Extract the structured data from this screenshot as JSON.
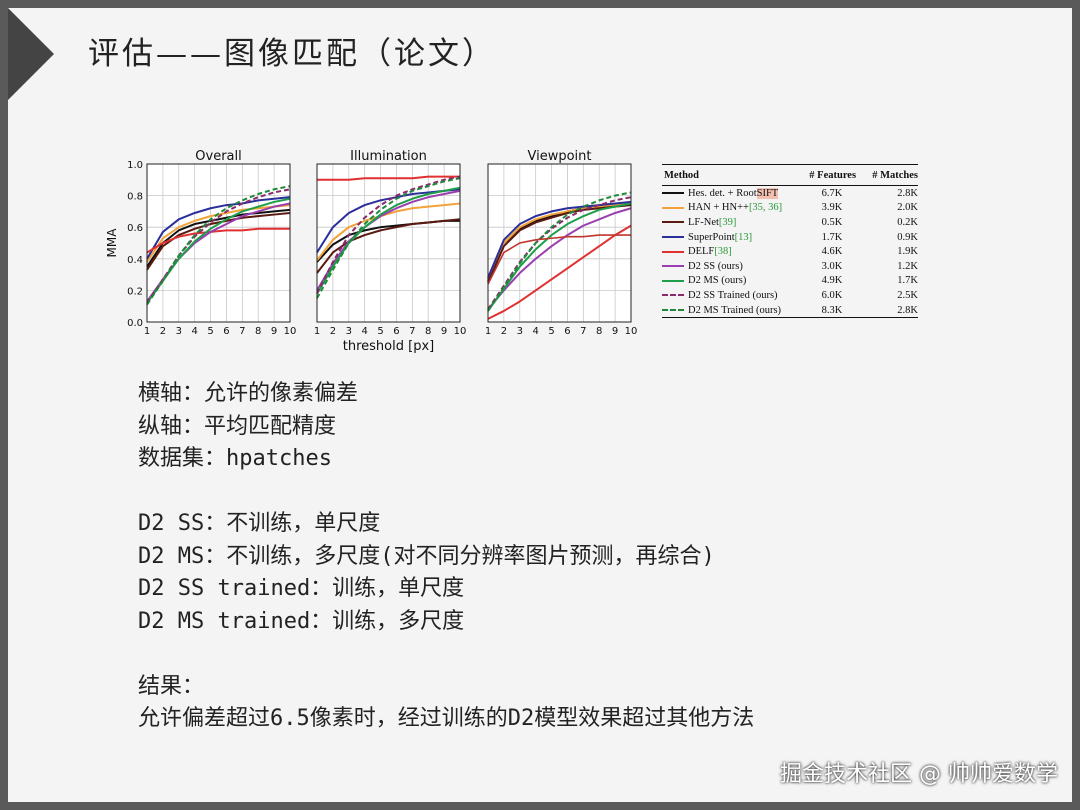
{
  "slide": {
    "title": "评估——图像匹配（论文）",
    "watermark": "掘金技术社区 @ 帅帅爱数学"
  },
  "chart_data": {
    "type": "line",
    "ylabel": "MMA",
    "xlabel": "threshold [px]",
    "x": [
      1,
      2,
      3,
      4,
      5,
      6,
      7,
      8,
      9,
      10
    ],
    "xlim": [
      1,
      10
    ],
    "ylim": [
      0,
      1
    ],
    "yticks": [
      "0.0",
      "0.2",
      "0.4",
      "0.6",
      "0.8",
      "1.0"
    ],
    "xticks": [
      "1",
      "2",
      "3",
      "4",
      "5",
      "6",
      "7",
      "8",
      "9",
      "10"
    ],
    "grid": true,
    "panels": [
      {
        "title": "Overall",
        "series": [
          {
            "key": "hes",
            "values": [
              0.35,
              0.5,
              0.58,
              0.62,
              0.64,
              0.66,
              0.68,
              0.69,
              0.7,
              0.71
            ]
          },
          {
            "key": "han",
            "values": [
              0.38,
              0.53,
              0.6,
              0.64,
              0.67,
              0.69,
              0.71,
              0.72,
              0.73,
              0.74
            ]
          },
          {
            "key": "lfnet",
            "values": [
              0.33,
              0.48,
              0.55,
              0.59,
              0.62,
              0.64,
              0.66,
              0.67,
              0.68,
              0.69
            ]
          },
          {
            "key": "superpoint",
            "values": [
              0.4,
              0.57,
              0.65,
              0.69,
              0.72,
              0.74,
              0.75,
              0.77,
              0.78,
              0.79
            ]
          },
          {
            "key": "delf",
            "values": [
              0.44,
              0.5,
              0.54,
              0.56,
              0.57,
              0.58,
              0.58,
              0.59,
              0.59,
              0.59
            ]
          },
          {
            "key": "d2ss",
            "values": [
              0.13,
              0.27,
              0.4,
              0.5,
              0.57,
              0.62,
              0.67,
              0.7,
              0.73,
              0.75
            ]
          },
          {
            "key": "d2ms",
            "values": [
              0.12,
              0.26,
              0.4,
              0.51,
              0.59,
              0.65,
              0.7,
              0.73,
              0.76,
              0.78
            ]
          },
          {
            "key": "d2ssT",
            "values": [
              0.12,
              0.27,
              0.42,
              0.54,
              0.63,
              0.7,
              0.75,
              0.79,
              0.82,
              0.84
            ]
          },
          {
            "key": "d2msT",
            "values": [
              0.11,
              0.26,
              0.42,
              0.55,
              0.65,
              0.72,
              0.77,
              0.81,
              0.84,
              0.86
            ]
          }
        ]
      },
      {
        "title": "Illumination",
        "series": [
          {
            "key": "hes",
            "values": [
              0.38,
              0.49,
              0.55,
              0.58,
              0.6,
              0.61,
              0.62,
              0.63,
              0.64,
              0.64
            ]
          },
          {
            "key": "han",
            "values": [
              0.39,
              0.52,
              0.6,
              0.64,
              0.67,
              0.7,
              0.72,
              0.73,
              0.74,
              0.75
            ]
          },
          {
            "key": "lfnet",
            "values": [
              0.31,
              0.44,
              0.51,
              0.55,
              0.58,
              0.6,
              0.62,
              0.63,
              0.64,
              0.65
            ]
          },
          {
            "key": "superpoint",
            "values": [
              0.44,
              0.6,
              0.69,
              0.74,
              0.77,
              0.79,
              0.81,
              0.82,
              0.83,
              0.84
            ]
          },
          {
            "key": "delf",
            "values": [
              0.9,
              0.9,
              0.9,
              0.91,
              0.91,
              0.91,
              0.91,
              0.92,
              0.92,
              0.92
            ]
          },
          {
            "key": "d2ss",
            "values": [
              0.2,
              0.37,
              0.51,
              0.6,
              0.67,
              0.72,
              0.76,
              0.79,
              0.81,
              0.83
            ]
          },
          {
            "key": "d2ms",
            "values": [
              0.18,
              0.35,
              0.5,
              0.6,
              0.68,
              0.74,
              0.78,
              0.81,
              0.83,
              0.85
            ]
          },
          {
            "key": "d2ssT",
            "values": [
              0.18,
              0.38,
              0.55,
              0.66,
              0.74,
              0.8,
              0.84,
              0.87,
              0.9,
              0.92
            ]
          },
          {
            "key": "d2msT",
            "values": [
              0.15,
              0.33,
              0.5,
              0.62,
              0.71,
              0.78,
              0.83,
              0.86,
              0.89,
              0.91
            ]
          }
        ]
      },
      {
        "title": "Viewpoint",
        "series": [
          {
            "key": "hes",
            "values": [
              0.26,
              0.5,
              0.59,
              0.64,
              0.67,
              0.7,
              0.72,
              0.73,
              0.74,
              0.75
            ]
          },
          {
            "key": "han",
            "values": [
              0.27,
              0.5,
              0.6,
              0.65,
              0.68,
              0.7,
              0.72,
              0.73,
              0.74,
              0.76
            ]
          },
          {
            "key": "lfnet",
            "values": [
              0.25,
              0.48,
              0.58,
              0.63,
              0.66,
              0.69,
              0.71,
              0.72,
              0.73,
              0.74
            ]
          },
          {
            "key": "superpoint",
            "values": [
              0.28,
              0.52,
              0.62,
              0.67,
              0.7,
              0.72,
              0.73,
              0.74,
              0.75,
              0.76
            ]
          },
          {
            "key": "delf",
            "values": [
              0.02,
              0.07,
              0.13,
              0.2,
              0.27,
              0.34,
              0.41,
              0.48,
              0.55,
              0.61
            ]
          },
          {
            "key": "d2ss",
            "values": [
              0.08,
              0.2,
              0.31,
              0.4,
              0.48,
              0.55,
              0.61,
              0.65,
              0.69,
              0.72
            ]
          },
          {
            "key": "d2ms",
            "values": [
              0.07,
              0.21,
              0.35,
              0.46,
              0.55,
              0.62,
              0.67,
              0.71,
              0.73,
              0.75
            ]
          },
          {
            "key": "d2ssT",
            "values": [
              0.08,
              0.23,
              0.38,
              0.5,
              0.59,
              0.66,
              0.71,
              0.74,
              0.77,
              0.79
            ]
          },
          {
            "key": "d2msT",
            "values": [
              0.07,
              0.22,
              0.37,
              0.5,
              0.6,
              0.68,
              0.73,
              0.77,
              0.8,
              0.82
            ]
          }
        ]
      }
    ],
    "extra_series": [
      {
        "panel": "Viewpoint",
        "key": "delf_upper",
        "values": [
          0.24,
          0.44,
          0.5,
          0.52,
          0.53,
          0.54,
          0.54,
          0.55,
          0.55,
          0.55
        ]
      }
    ]
  },
  "legend_table": {
    "headers": {
      "method": "Method",
      "features": "# Features",
      "matches": "# Matches"
    },
    "rows": [
      {
        "key": "hes",
        "method_pre": "Hes. det. + Root",
        "method_hl": "SIFT",
        "method_ref": "",
        "features": "6.7K",
        "matches": "2.8K",
        "color": "#111111",
        "dashed": false
      },
      {
        "key": "han",
        "method_pre": "HAN + HN++ ",
        "method_hl": "",
        "method_ref": "[35, 36]",
        "features": "3.9K",
        "matches": "2.0K",
        "color": "#f2a33a",
        "dashed": false
      },
      {
        "key": "lfnet",
        "method_pre": "LF-Net ",
        "method_hl": "",
        "method_ref": "[39]",
        "features": "0.5K",
        "matches": "0.2K",
        "color": "#5a1a10",
        "dashed": false
      },
      {
        "key": "superpoint",
        "method_pre": "SuperPoint ",
        "method_hl": "",
        "method_ref": "[13]",
        "features": "1.7K",
        "matches": "0.9K",
        "color": "#2b2f9a",
        "dashed": false
      },
      {
        "key": "delf",
        "method_pre": "DELF ",
        "method_hl": "",
        "method_ref": "[38]",
        "features": "4.6K",
        "matches": "1.9K",
        "color": "#e03030",
        "dashed": false
      },
      {
        "key": "d2ss",
        "method_pre": "D2 SS (ours)",
        "method_hl": "",
        "method_ref": "",
        "features": "3.0K",
        "matches": "1.2K",
        "color": "#9b3fb0",
        "dashed": false
      },
      {
        "key": "d2ms",
        "method_pre": "D2 MS (ours)",
        "method_hl": "",
        "method_ref": "",
        "features": "4.9K",
        "matches": "1.7K",
        "color": "#1f9e4a",
        "dashed": false
      },
      {
        "key": "d2ssT",
        "method_pre": "D2 SS Trained (ours)",
        "method_hl": "",
        "method_ref": "",
        "features": "6.0K",
        "matches": "2.5K",
        "color": "#8a2a6a",
        "dashed": true
      },
      {
        "key": "d2msT",
        "method_pre": "D2 MS Trained (ours)",
        "method_hl": "",
        "method_ref": "",
        "features": "8.3K",
        "matches": "2.8K",
        "color": "#1f8a3a",
        "dashed": true
      }
    ]
  },
  "notes": [
    "横轴：允许的像素偏差",
    "纵轴：平均匹配精度",
    "数据集：hpatches",
    "",
    "D2 SS：不训练，单尺度",
    "D2 MS：不训练，多尺度(对不同分辨率图片预测，再综合)",
    "D2 SS trained：训练，单尺度",
    "D2 MS trained：训练，多尺度",
    "",
    "结果：",
    "允许偏差超过6.5像素时，经过训练的D2模型效果超过其他方法"
  ]
}
